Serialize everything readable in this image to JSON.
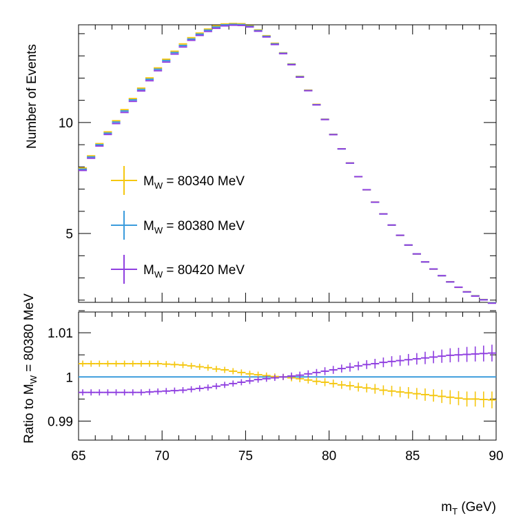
{
  "colors": {
    "yellow": "#f5c710",
    "blue": "#3a9bdc",
    "purple": "#8f3fe0",
    "axis": "#000000"
  },
  "chart_data": [
    {
      "type": "line",
      "panel": "top",
      "style": "histogram-with-error-bars",
      "ylabel": "Number of Events",
      "xlim": [
        65,
        90
      ],
      "ylim": [
        1.9,
        14.4
      ],
      "yticks_labeled": [
        {
          "v": 5,
          "label": "5"
        },
        {
          "v": 10,
          "label": "10"
        }
      ],
      "x": [
        65.25,
        65.75,
        66.25,
        66.75,
        67.25,
        67.75,
        68.25,
        68.75,
        69.25,
        69.75,
        70.25,
        70.75,
        71.25,
        71.75,
        72.25,
        72.75,
        73.25,
        73.75,
        74.25,
        74.75,
        75.25,
        75.75,
        76.25,
        76.75,
        77.25,
        77.75,
        78.25,
        78.75,
        79.25,
        79.75,
        80.25,
        80.75,
        81.25,
        81.75,
        82.25,
        82.75,
        83.25,
        83.75,
        84.25,
        84.75,
        85.25,
        85.75,
        86.25,
        86.75,
        87.25,
        87.75,
        88.25,
        88.75,
        89.25,
        89.75
      ],
      "series": [
        {
          "name": "80340",
          "label_prefix": "M",
          "label_sub": "W",
          "label_suffix": " = 80340 MeV",
          "color_key": "yellow",
          "values": [
            7.92,
            8.47,
            9.02,
            9.55,
            10.05,
            10.55,
            11.05,
            11.52,
            11.98,
            12.43,
            12.82,
            13.18,
            13.51,
            13.79,
            14.0,
            14.18,
            14.32,
            14.41,
            14.43,
            14.42,
            14.33,
            14.14,
            13.88,
            13.54,
            13.11,
            12.61,
            12.05,
            11.43,
            10.79,
            10.12,
            9.44,
            8.79,
            8.15,
            7.53,
            6.94,
            6.39,
            5.86,
            5.35,
            4.89,
            4.45,
            4.05,
            3.69,
            3.37,
            3.07,
            2.8,
            2.55,
            2.35,
            2.17,
            2.0,
            1.86
          ]
        },
        {
          "name": "80380",
          "label_prefix": "M",
          "label_sub": "W",
          "label_suffix": " = 80380 MeV",
          "color_key": "blue",
          "values": [
            7.9,
            8.45,
            9.0,
            9.52,
            10.02,
            10.52,
            11.02,
            11.49,
            11.95,
            12.4,
            12.79,
            13.15,
            13.47,
            13.76,
            13.98,
            14.16,
            14.3,
            14.4,
            14.42,
            14.41,
            14.33,
            14.14,
            13.88,
            13.54,
            13.12,
            12.62,
            12.06,
            11.44,
            10.8,
            10.14,
            9.46,
            8.81,
            8.17,
            7.56,
            6.97,
            6.41,
            5.88,
            5.38,
            4.92,
            4.48,
            4.08,
            3.72,
            3.4,
            3.1,
            2.82,
            2.58,
            2.37,
            2.19,
            2.02,
            1.88
          ]
        },
        {
          "name": "80420",
          "label_prefix": "M",
          "label_sub": "W",
          "label_suffix": " = 80420 MeV",
          "color_key": "purple",
          "values": [
            7.87,
            8.42,
            8.97,
            9.49,
            9.98,
            10.48,
            10.98,
            11.45,
            11.91,
            12.36,
            12.75,
            13.11,
            13.43,
            13.73,
            13.95,
            14.13,
            14.27,
            14.38,
            14.41,
            14.4,
            14.33,
            14.14,
            13.88,
            13.54,
            13.13,
            12.63,
            12.07,
            11.46,
            10.82,
            10.16,
            9.48,
            8.84,
            8.2,
            7.59,
            7.0,
            6.44,
            5.91,
            5.41,
            4.95,
            4.51,
            4.11,
            3.75,
            3.43,
            3.13,
            2.85,
            2.61,
            2.4,
            2.21,
            2.04,
            1.89
          ]
        }
      ]
    },
    {
      "type": "line",
      "panel": "bottom",
      "style": "ratio-with-error-bars",
      "ylabel_prefix": "Ratio to M",
      "ylabel_sub": "W",
      "ylabel_suffix": " = 80380 MeV",
      "xlabel_prefix": "m",
      "xlabel_sub": "T",
      "xlabel_suffix": " (GeV)",
      "xlim": [
        65,
        90
      ],
      "ylim": [
        0.9857,
        1.0147
      ],
      "xticks_labeled": [
        {
          "v": 65,
          "label": "65"
        },
        {
          "v": 70,
          "label": "70"
        },
        {
          "v": 75,
          "label": "75"
        },
        {
          "v": 80,
          "label": "80"
        },
        {
          "v": 85,
          "label": "85"
        },
        {
          "v": 90,
          "label": "90"
        }
      ],
      "yticks_labeled": [
        {
          "v": 0.99,
          "label": "0.99"
        },
        {
          "v": 1.0,
          "label": "1"
        },
        {
          "v": 1.01,
          "label": "1.01"
        }
      ],
      "x": [
        65.25,
        65.75,
        66.25,
        66.75,
        67.25,
        67.75,
        68.25,
        68.75,
        69.25,
        69.75,
        70.25,
        70.75,
        71.25,
        71.75,
        72.25,
        72.75,
        73.25,
        73.75,
        74.25,
        74.75,
        75.25,
        75.75,
        76.25,
        76.75,
        77.25,
        77.75,
        78.25,
        78.75,
        79.25,
        79.75,
        80.25,
        80.75,
        81.25,
        81.75,
        82.25,
        82.75,
        83.25,
        83.75,
        84.25,
        84.75,
        85.25,
        85.75,
        86.25,
        86.75,
        87.25,
        87.75,
        88.25,
        88.75,
        89.25,
        89.75
      ],
      "series": [
        {
          "name": "80340",
          "color_key": "yellow",
          "values": [
            1.003,
            1.003,
            1.003,
            1.003,
            1.003,
            1.003,
            1.003,
            1.003,
            1.003,
            1.003,
            1.0029,
            1.0028,
            1.0027,
            1.0025,
            1.0023,
            1.0021,
            1.0018,
            1.0016,
            1.0013,
            1.001,
            1.0007,
            1.0005,
            1.0003,
            1.0001,
            1.0,
            0.9998,
            0.9996,
            0.9993,
            0.999,
            0.9988,
            0.9985,
            0.9982,
            0.998,
            0.9977,
            0.9975,
            0.9973,
            0.997,
            0.9968,
            0.9966,
            0.9964,
            0.9962,
            0.996,
            0.9958,
            0.9956,
            0.9954,
            0.9952,
            0.995,
            0.995,
            0.9949,
            0.9948
          ],
          "errors": [
            0.0007,
            0.0007,
            0.0007,
            0.0007,
            0.0007,
            0.0007,
            0.0007,
            0.0007,
            0.0007,
            0.0007,
            0.0007,
            0.0007,
            0.0007,
            0.0007,
            0.0007,
            0.0007,
            0.0007,
            0.0007,
            0.0007,
            0.0007,
            0.0007,
            0.0007,
            0.0007,
            0.0007,
            0.0007,
            0.0008,
            0.0008,
            0.0008,
            0.0008,
            0.0009,
            0.0009,
            0.0009,
            0.001,
            0.001,
            0.001,
            0.0011,
            0.0011,
            0.0012,
            0.0012,
            0.0013,
            0.0013,
            0.0014,
            0.0014,
            0.0015,
            0.0016,
            0.0016,
            0.0017,
            0.0017,
            0.0018,
            0.0019
          ]
        },
        {
          "name": "80380",
          "color_key": "blue",
          "values": [
            1.0,
            1.0,
            1.0,
            1.0,
            1.0,
            1.0,
            1.0,
            1.0,
            1.0,
            1.0,
            1.0,
            1.0,
            1.0,
            1.0,
            1.0,
            1.0,
            1.0,
            1.0,
            1.0,
            1.0,
            1.0,
            1.0,
            1.0,
            1.0,
            1.0,
            1.0,
            1.0,
            1.0,
            1.0,
            1.0,
            1.0,
            1.0,
            1.0,
            1.0,
            1.0,
            1.0,
            1.0,
            1.0,
            1.0,
            1.0,
            1.0,
            1.0,
            1.0,
            1.0,
            1.0,
            1.0,
            1.0,
            1.0,
            1.0,
            1.0
          ],
          "errors": [
            0,
            0,
            0,
            0,
            0,
            0,
            0,
            0,
            0,
            0,
            0,
            0,
            0,
            0,
            0,
            0,
            0,
            0,
            0,
            0,
            0,
            0,
            0,
            0,
            0,
            0,
            0,
            0,
            0,
            0,
            0,
            0,
            0,
            0,
            0,
            0,
            0,
            0,
            0,
            0,
            0,
            0,
            0,
            0,
            0,
            0,
            0,
            0,
            0,
            0
          ]
        },
        {
          "name": "80420",
          "color_key": "purple",
          "values": [
            0.9965,
            0.9965,
            0.9965,
            0.9965,
            0.9965,
            0.9965,
            0.9965,
            0.9965,
            0.9966,
            0.9967,
            0.9968,
            0.9969,
            0.997,
            0.9972,
            0.9974,
            0.9976,
            0.9979,
            0.9982,
            0.9985,
            0.9988,
            0.9991,
            0.9994,
            0.9996,
            0.9998,
            1.0,
            1.0002,
            1.0004,
            1.0007,
            1.001,
            1.0013,
            1.0016,
            1.0019,
            1.0022,
            1.0025,
            1.0028,
            1.003,
            1.0033,
            1.0035,
            1.0037,
            1.0039,
            1.0041,
            1.0043,
            1.0045,
            1.0047,
            1.0049,
            1.005,
            1.0051,
            1.0052,
            1.0053,
            1.0054
          ],
          "errors": [
            0.0007,
            0.0007,
            0.0007,
            0.0007,
            0.0007,
            0.0007,
            0.0007,
            0.0007,
            0.0007,
            0.0007,
            0.0007,
            0.0007,
            0.0007,
            0.0007,
            0.0007,
            0.0007,
            0.0007,
            0.0007,
            0.0007,
            0.0007,
            0.0007,
            0.0007,
            0.0007,
            0.0007,
            0.0007,
            0.0008,
            0.0008,
            0.0008,
            0.0008,
            0.0009,
            0.0009,
            0.0009,
            0.001,
            0.001,
            0.001,
            0.0011,
            0.0011,
            0.0012,
            0.0012,
            0.0013,
            0.0013,
            0.0014,
            0.0014,
            0.0015,
            0.0016,
            0.0016,
            0.0017,
            0.0017,
            0.0018,
            0.0019
          ]
        }
      ]
    }
  ]
}
